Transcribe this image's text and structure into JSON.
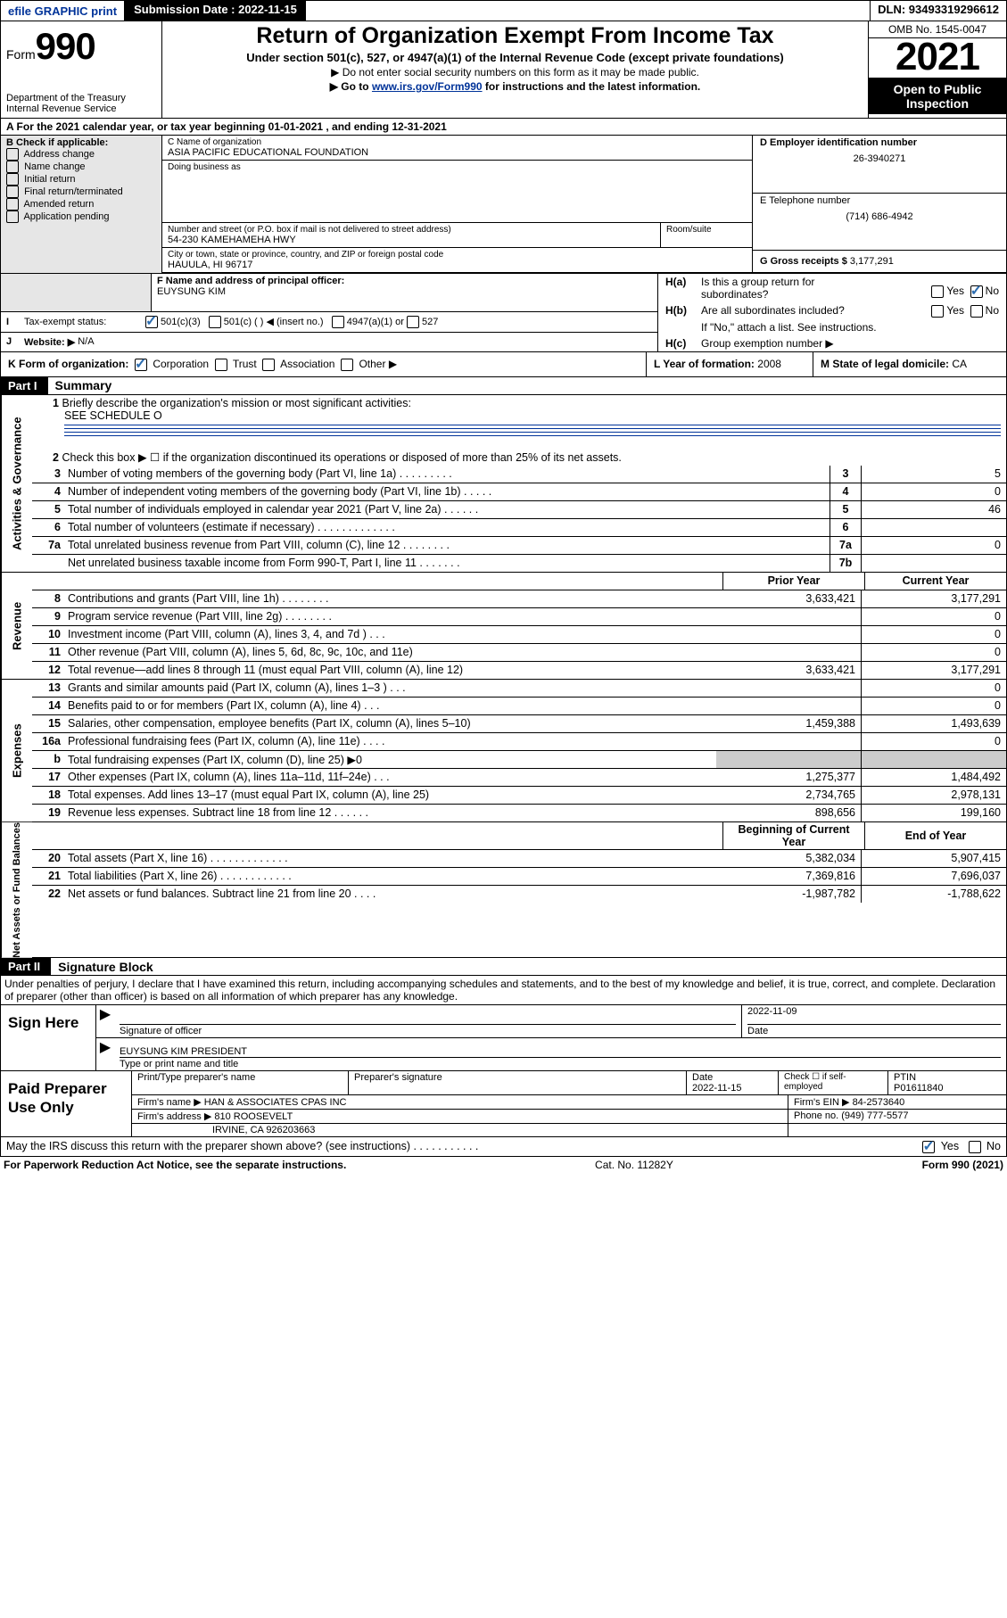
{
  "topbar": {
    "efile": "efile GRAPHIC print",
    "subdate_lbl": "Submission Date : 2022-11-15",
    "dln": "DLN: 93493319296612"
  },
  "header": {
    "form_word": "Form",
    "form_num": "990",
    "dept": "Department of the Treasury",
    "irs": "Internal Revenue Service",
    "title": "Return of Organization Exempt From Income Tax",
    "sub1": "Under section 501(c), 527, or 4947(a)(1) of the Internal Revenue Code (except private foundations)",
    "sub2": "▶ Do not enter social security numbers on this form as it may be made public.",
    "sub3_pre": "▶ Go to ",
    "sub3_link": "www.irs.gov/Form990",
    "sub3_post": " for instructions and the latest information.",
    "omb": "OMB No. 1545-0047",
    "year": "2021",
    "inspect": "Open to Public Inspection"
  },
  "A": {
    "line": "A For the 2021 calendar year, or tax year beginning 01-01-2021   , and ending 12-31-2021"
  },
  "B": {
    "hdr": "B Check if applicable:",
    "opts": [
      "Address change",
      "Name change",
      "Initial return",
      "Final return/terminated",
      "Amended return",
      "Application pending"
    ]
  },
  "C": {
    "name_lbl": "C Name of organization",
    "name": "ASIA PACIFIC EDUCATIONAL FOUNDATION",
    "dba_lbl": "Doing business as",
    "dba": "",
    "addr_lbl": "Number and street (or P.O. box if mail is not delivered to street address)",
    "room_lbl": "Room/suite",
    "addr": "54-230 KAMEHAMEHA HWY",
    "city_lbl": "City or town, state or province, country, and ZIP or foreign postal code",
    "city": "HAUULA, HI  96717"
  },
  "D": {
    "lbl": "D Employer identification number",
    "val": "26-3940271"
  },
  "E": {
    "lbl": "E Telephone number",
    "val": "(714) 686-4942"
  },
  "G": {
    "lbl": "G Gross receipts $",
    "val": "3,177,291"
  },
  "F": {
    "lbl": "F Name and address of principal officer:",
    "val": "EUYSUNG KIM"
  },
  "H": {
    "a_lbl": "Is this a group return for",
    "a_sub": "subordinates?",
    "b_lbl": "Are all subordinates included?",
    "b_note": "If \"No,\" attach a list. See instructions.",
    "c_lbl": "Group exemption number ▶",
    "yes": "Yes",
    "no": "No"
  },
  "I": {
    "lbl": "Tax-exempt status:",
    "o1": "501(c)(3)",
    "o2": "501(c) (  ) ◀ (insert no.)",
    "o3": "4947(a)(1) or",
    "o4": "527"
  },
  "J": {
    "lbl": "Website: ▶",
    "val": "N/A"
  },
  "K": {
    "lbl": "K Form of organization:",
    "o1": "Corporation",
    "o2": "Trust",
    "o3": "Association",
    "o4": "Other ▶"
  },
  "L": {
    "lbl": "L Year of formation:",
    "val": "2008"
  },
  "M": {
    "lbl": "M State of legal domicile:",
    "val": "CA"
  },
  "partI": {
    "hdr": "Part I",
    "title": "Summary"
  },
  "summary": {
    "side_gov": "Activities & Governance",
    "side_rev": "Revenue",
    "side_exp": "Expenses",
    "side_net": "Net Assets or Fund Balances",
    "l1_lbl": "Briefly describe the organization's mission or most significant activities:",
    "l1_val": "SEE SCHEDULE O",
    "l2": "Check this box ▶ ☐  if the organization discontinued its operations or disposed of more than 25% of its net assets.",
    "lines": [
      {
        "n": "3",
        "d": "Number of voting members of the governing body (Part VI, line 1a)  .    .    .    .    .    .    .    .    .",
        "r": "3",
        "v": "5"
      },
      {
        "n": "4",
        "d": "Number of independent voting members of the governing body (Part VI, line 1b)  .    .    .    .    .",
        "r": "4",
        "v": "0"
      },
      {
        "n": "5",
        "d": "Total number of individuals employed in calendar year 2021 (Part V, line 2a)   .    .    .    .    .    .",
        "r": "5",
        "v": "46"
      },
      {
        "n": "6",
        "d": "Total number of volunteers (estimate if necessary)   .    .    .    .    .    .    .    .    .    .    .    .    .",
        "r": "6",
        "v": ""
      },
      {
        "n": "7a",
        "d": "Total unrelated business revenue from Part VIII, column (C), line 12  .    .    .    .    .    .    .    .",
        "r": "7a",
        "v": "0"
      },
      {
        "n": "",
        "d": "Net unrelated business taxable income from Form 990-T, Part I, line 11  .    .    .    .    .    .    .",
        "r": "7b",
        "v": ""
      }
    ],
    "hdr_b": "b",
    "col_prior": "Prior Year",
    "col_curr": "Current Year",
    "rev": [
      {
        "n": "8",
        "d": "Contributions and grants (Part VIII, line 1h)   .    .    .    .    .    .    .    .",
        "p": "3,633,421",
        "c": "3,177,291"
      },
      {
        "n": "9",
        "d": "Program service revenue (Part VIII, line 2g)   .    .    .    .    .    .    .    .",
        "p": "",
        "c": "0"
      },
      {
        "n": "10",
        "d": "Investment income (Part VIII, column (A), lines 3, 4, and 7d )   .    .    .",
        "p": "",
        "c": "0"
      },
      {
        "n": "11",
        "d": "Other revenue (Part VIII, column (A), lines 5, 6d, 8c, 9c, 10c, and 11e)",
        "p": "",
        "c": "0"
      },
      {
        "n": "12",
        "d": "Total revenue—add lines 8 through 11 (must equal Part VIII, column (A), line 12)",
        "p": "3,633,421",
        "c": "3,177,291"
      }
    ],
    "exp": [
      {
        "n": "13",
        "d": "Grants and similar amounts paid (Part IX, column (A), lines 1–3 )  .    .    .",
        "p": "",
        "c": "0"
      },
      {
        "n": "14",
        "d": "Benefits paid to or for members (Part IX, column (A), line 4)  .    .    .",
        "p": "",
        "c": "0"
      },
      {
        "n": "15",
        "d": "Salaries, other compensation, employee benefits (Part IX, column (A), lines 5–10)",
        "p": "1,459,388",
        "c": "1,493,639"
      },
      {
        "n": "16a",
        "d": "Professional fundraising fees (Part IX, column (A), line 11e)  .    .    .    .",
        "p": "",
        "c": "0"
      },
      {
        "n": "b",
        "d": "Total fundraising expenses (Part IX, column (D), line 25) ▶0",
        "p": "shade",
        "c": "shade"
      },
      {
        "n": "17",
        "d": "Other expenses (Part IX, column (A), lines 11a–11d, 11f–24e)   .    .    .",
        "p": "1,275,377",
        "c": "1,484,492"
      },
      {
        "n": "18",
        "d": "Total expenses. Add lines 13–17 (must equal Part IX, column (A), line 25)",
        "p": "2,734,765",
        "c": "2,978,131"
      },
      {
        "n": "19",
        "d": "Revenue less expenses. Subtract line 18 from line 12  .    .    .    .    .    .",
        "p": "898,656",
        "c": "199,160"
      }
    ],
    "col_boy": "Beginning of Current Year",
    "col_eoy": "End of Year",
    "net": [
      {
        "n": "20",
        "d": "Total assets (Part X, line 16)   .    .    .    .    .    .    .    .    .    .    .    .    .",
        "p": "5,382,034",
        "c": "5,907,415"
      },
      {
        "n": "21",
        "d": "Total liabilities (Part X, line 26)   .    .    .    .    .    .    .    .    .    .    .    .",
        "p": "7,369,816",
        "c": "7,696,037"
      },
      {
        "n": "22",
        "d": "Net assets or fund balances. Subtract line 21 from line 20  .    .    .    .",
        "p": "-1,987,782",
        "c": "-1,788,622"
      }
    ]
  },
  "partII": {
    "hdr": "Part II",
    "title": "Signature Block"
  },
  "sig": {
    "decl": "Under penalties of perjury, I declare that I have examined this return, including accompanying schedules and statements, and to the best of my knowledge and belief, it is true, correct, and complete. Declaration of preparer (other than officer) is based on all information of which preparer has any knowledge.",
    "sign_here": "Sign Here",
    "sig_off_lbl": "Signature of officer",
    "date_lbl": "Date",
    "date_val": "2022-11-09",
    "name_title": "EUYSUNG KIM PRESIDENT",
    "name_title_lbl": "Type or print name and title",
    "paid": "Paid Preparer Use Only",
    "prep_name_lbl": "Print/Type preparer's name",
    "prep_sig_lbl": "Preparer's signature",
    "prep_date_lbl": "Date",
    "prep_date": "2022-11-15",
    "check_self": "Check ☐ if self-employed",
    "ptin_lbl": "PTIN",
    "ptin": "P01611840",
    "firm_name_lbl": "Firm's name    ▶",
    "firm_name": "HAN & ASSOCIATES CPAS INC",
    "firm_ein_lbl": "Firm's EIN ▶",
    "firm_ein": "84-2573640",
    "firm_addr_lbl": "Firm's address ▶",
    "firm_addr1": "810 ROOSEVELT",
    "firm_addr2": "IRVINE, CA  926203663",
    "phone_lbl": "Phone no.",
    "phone": "(949) 777-5577",
    "may_irs": "May the IRS discuss this return with the preparer shown above? (see instructions)   .    .    .    .    .    .    .    .    .    .    .",
    "yes": "Yes",
    "no": "No"
  },
  "footer": {
    "left": "For Paperwork Reduction Act Notice, see the separate instructions.",
    "mid": "Cat. No. 11282Y",
    "right": "Form 990 (2021)"
  }
}
